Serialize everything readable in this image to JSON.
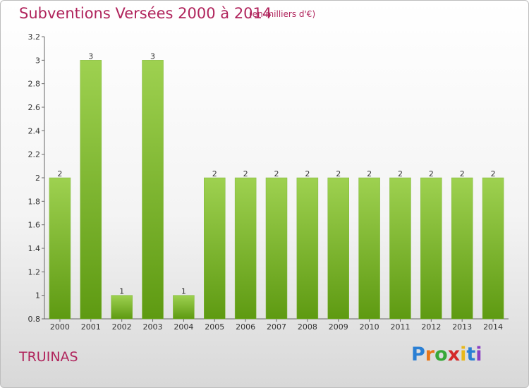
{
  "header": {
    "title": "Subventions Versées 2000 à 2014",
    "unit": "(en milliers d'€)"
  },
  "footer": {
    "place": "TRUINAS",
    "logo_letters": [
      "P",
      "r",
      "o",
      "x",
      "i",
      "t",
      "i"
    ],
    "logo_colors": [
      "#2a7fd4",
      "#e8761a",
      "#38a838",
      "#d42a2a",
      "#e8b81a",
      "#2a7fd4",
      "#8a3fc4"
    ]
  },
  "colors": {
    "title": "#b0245c",
    "bar_light": "#9ed150",
    "bar_dark": "#5e9a12"
  },
  "chart_data": {
    "type": "bar",
    "categories": [
      "2000",
      "2001",
      "2002",
      "2003",
      "2004",
      "2005",
      "2006",
      "2007",
      "2008",
      "2009",
      "2010",
      "2011",
      "2012",
      "2013",
      "2014"
    ],
    "values": [
      2,
      3,
      1,
      3,
      1,
      2,
      2,
      2,
      2,
      2,
      2,
      2,
      2,
      2,
      2
    ],
    "data_labels": [
      "2",
      "3",
      "1",
      "3",
      "1",
      "2",
      "2",
      "2",
      "2",
      "2",
      "2",
      "2",
      "2",
      "2",
      "2"
    ],
    "yticks": [
      "0.8",
      "1",
      "1.2",
      "1.4",
      "1.6",
      "1.8",
      "2",
      "2.2",
      "2.4",
      "2.6",
      "2.8",
      "3",
      "3.2"
    ],
    "ylim": [
      0.8,
      3.2
    ],
    "grid": false
  }
}
